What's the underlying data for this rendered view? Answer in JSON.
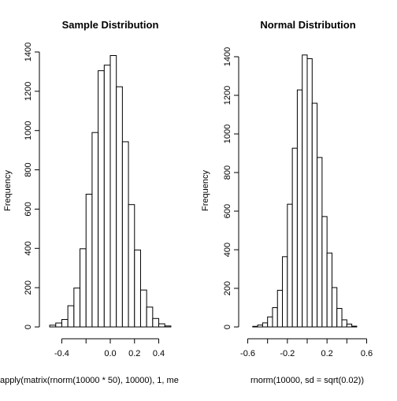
{
  "chart_data": [
    {
      "type": "bar",
      "title": "Sample Distribution",
      "xlabel": "apply(matrix(rnorm(10000 * 50), 10000), 1, me",
      "ylabel": "Frequency",
      "bin_width": 0.05,
      "bins_start": -0.5,
      "values": [
        9,
        20,
        38,
        108,
        198,
        398,
        676,
        990,
        1305,
        1333,
        1382,
        1223,
        943,
        623,
        392,
        188,
        101,
        43,
        16,
        5
      ],
      "xlim": [
        -0.52,
        0.52
      ],
      "ylim": [
        0,
        1400
      ],
      "x_ticks": [
        -0.4,
        -0.2,
        0.0,
        0.2,
        0.4
      ],
      "x_tick_labels": [
        "-0.4",
        "",
        "0.0",
        "0.2",
        "0.4"
      ],
      "y_ticks": [
        0,
        200,
        400,
        600,
        800,
        1000,
        1200,
        1400
      ],
      "y_tick_labels": [
        "0",
        "200",
        "400",
        "600",
        "800",
        "1000",
        "1200",
        "1400"
      ]
    },
    {
      "type": "bar",
      "title": "Normal Distribution",
      "xlabel": "rnorm(10000, sd = sqrt(0.02))",
      "ylabel": "Frequency",
      "bin_width": 0.05,
      "bins_start": -0.55,
      "values": [
        3,
        10,
        21,
        52,
        100,
        190,
        364,
        636,
        926,
        1228,
        1409,
        1390,
        1159,
        878,
        572,
        383,
        204,
        96,
        37,
        15,
        4
      ],
      "xlim": [
        -0.62,
        0.62
      ],
      "ylim": [
        0,
        1400
      ],
      "x_ticks": [
        -0.6,
        -0.4,
        -0.2,
        0.0,
        0.2,
        0.4,
        0.6
      ],
      "x_tick_labels": [
        "-0.6",
        "",
        "-0.2",
        "",
        "0.2",
        "",
        "0.6"
      ],
      "y_ticks": [
        0,
        200,
        400,
        600,
        800,
        1000,
        1200,
        1400
      ],
      "y_tick_labels": [
        "0",
        "200",
        "400",
        "600",
        "800",
        "1000",
        "1200",
        "1400"
      ]
    }
  ]
}
